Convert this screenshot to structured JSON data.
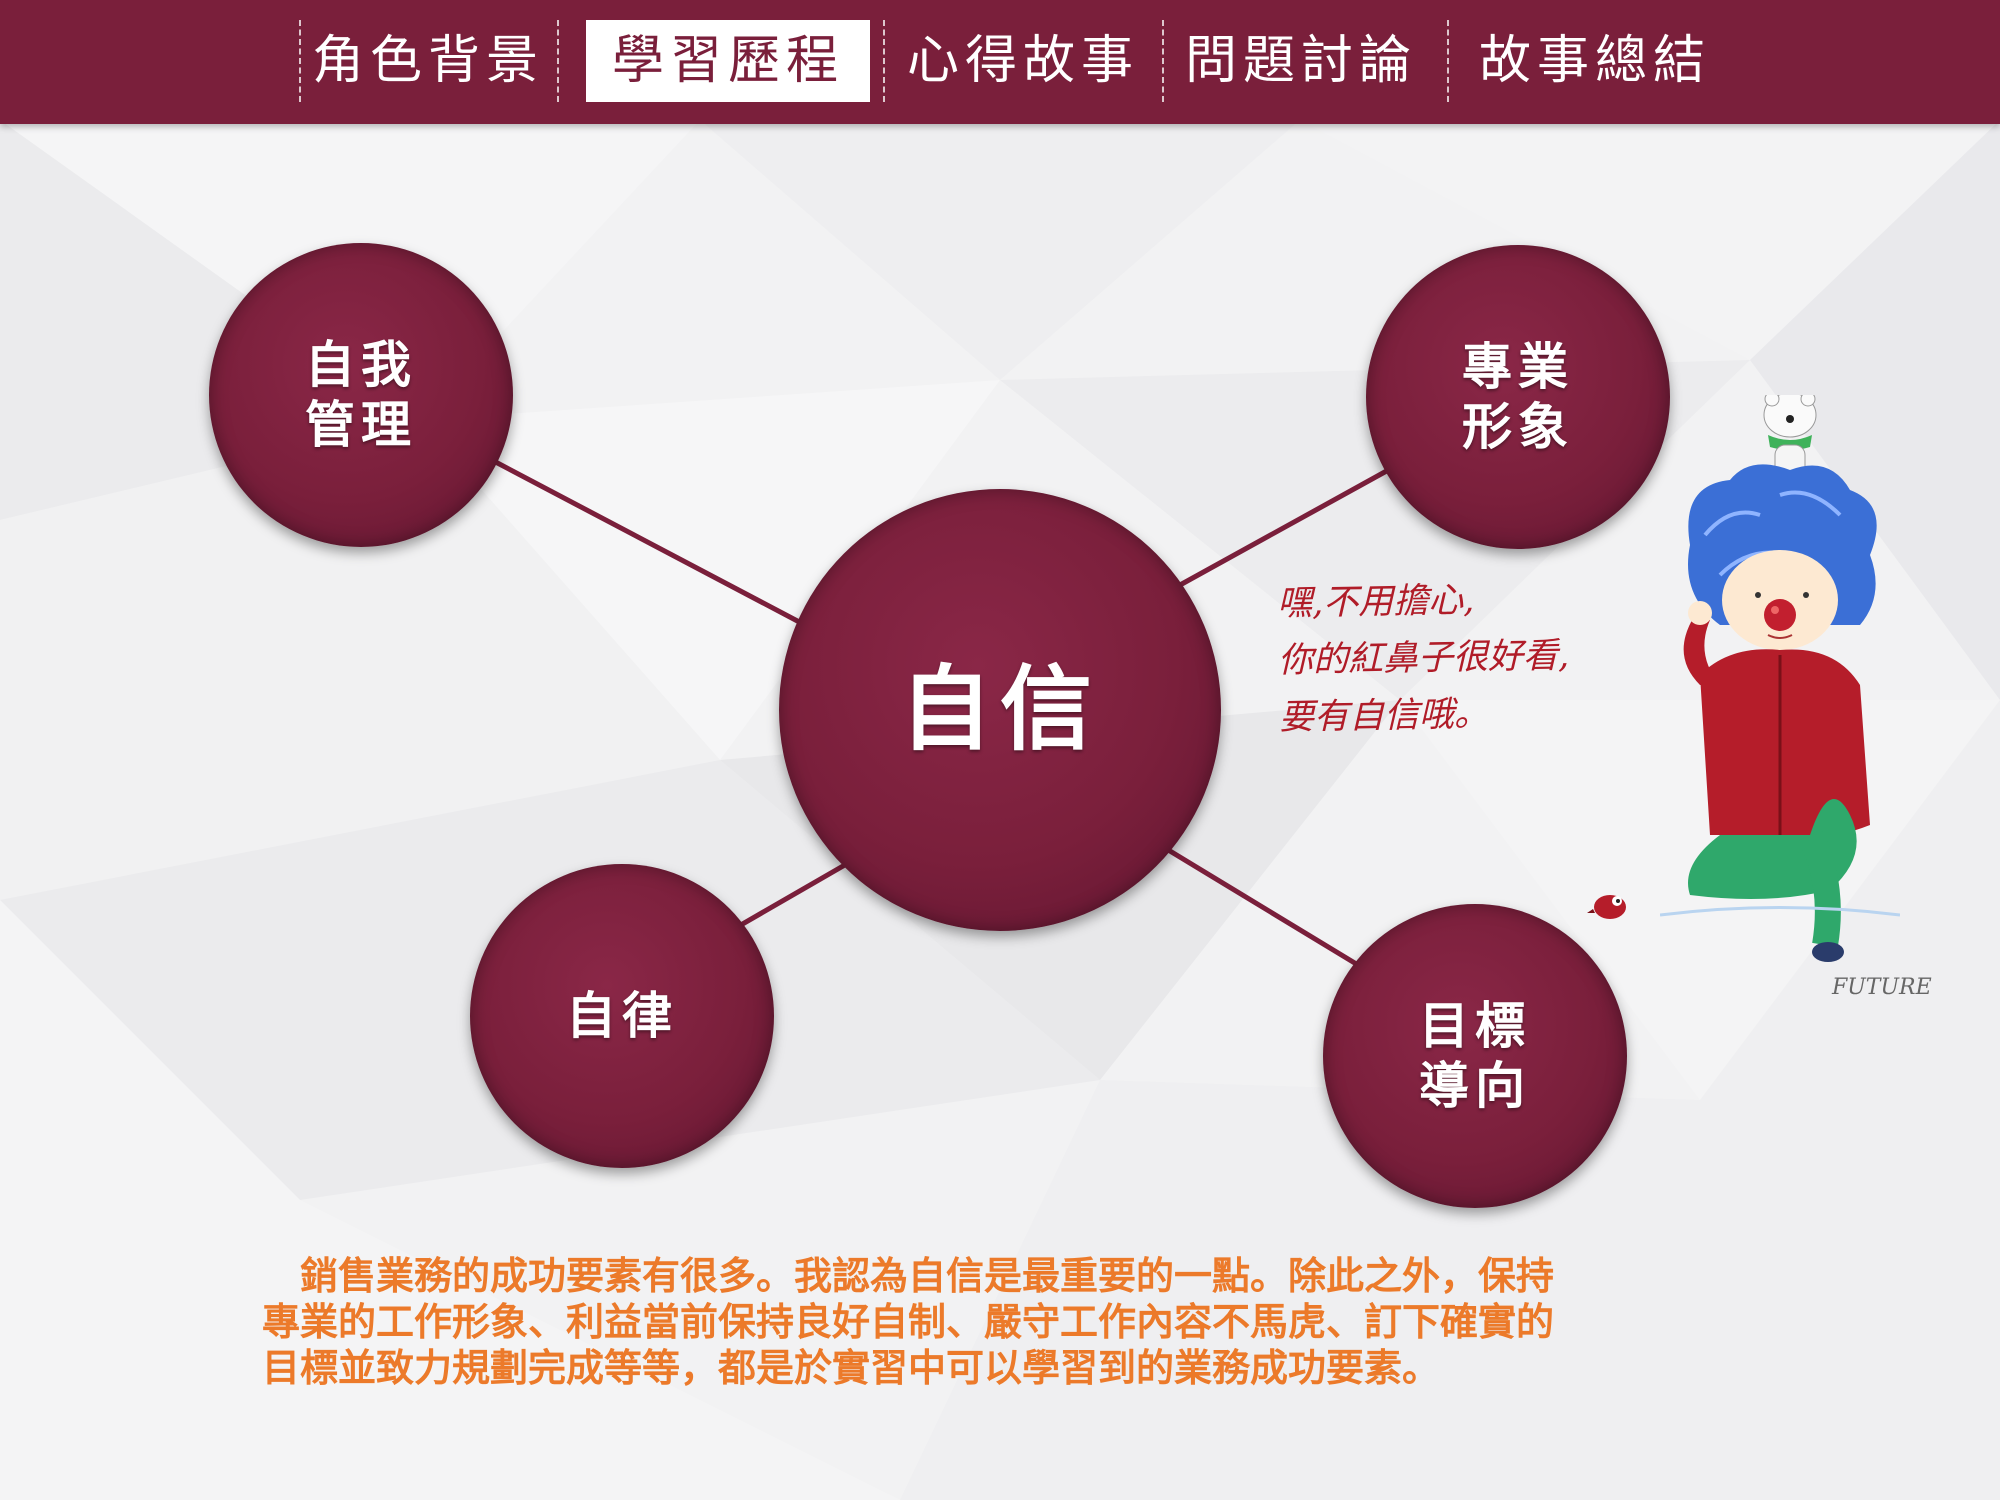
{
  "nav": {
    "tabs": [
      {
        "label": "角色背景",
        "active": false
      },
      {
        "label": "學習歷程",
        "active": true
      },
      {
        "label": "心得故事",
        "active": false
      },
      {
        "label": "問題討論",
        "active": false
      },
      {
        "label": "故事總結",
        "active": false
      }
    ]
  },
  "diagram": {
    "center": {
      "label": "自信"
    },
    "nodes": {
      "self_management": {
        "line1": "自我",
        "line2": "管理"
      },
      "professional_image": {
        "line1": "專業",
        "line2": "形象"
      },
      "self_discipline": {
        "line1": "自律"
      },
      "goal_oriented": {
        "line1": "目標",
        "line2": "導向"
      }
    }
  },
  "speech": {
    "lines": [
      "嘿,不用擔心,",
      "你的紅鼻子很好看,",
      "要有自信哦。"
    ]
  },
  "signature": "FUTURE",
  "caption": {
    "lines": [
      "　銷售業務的成功要素有很多。我認為自信是最重要的一點。除此之外，保持",
      "專業的工作形象、利益當前保持良好自制、嚴守工作內容不馬虎、訂下確實的",
      "目標並致力規劃完成等等，都是於實習中可以學習到的業務成功要素。"
    ]
  },
  "colors": {
    "primary": "#7a1f3b",
    "caption": "#ec7a2a",
    "speech": "#b01c28"
  }
}
